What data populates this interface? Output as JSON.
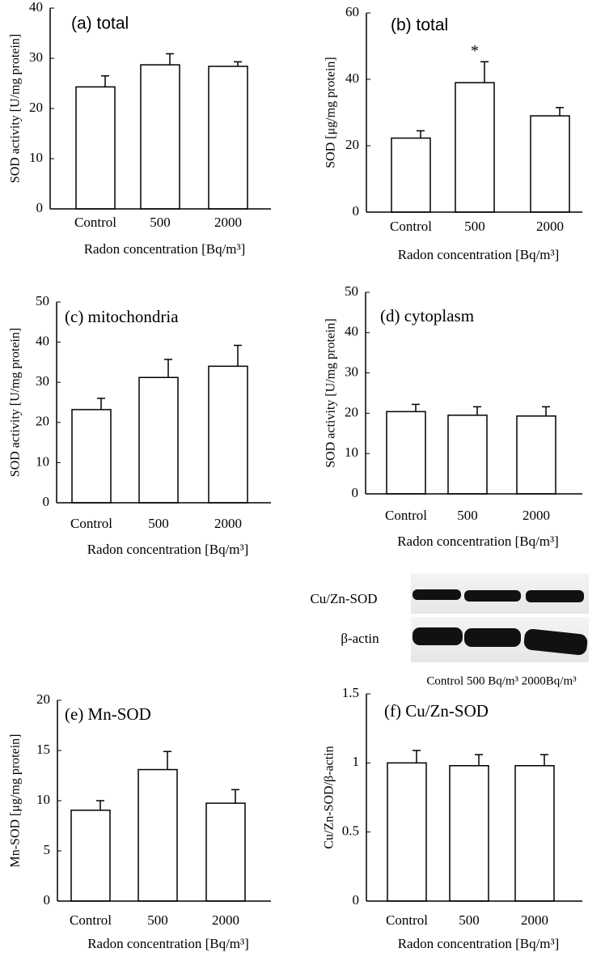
{
  "chart_data": [
    {
      "type": "bar",
      "title": "(a) total",
      "y_label": "SOD activity [U/mg protein]",
      "x_label": "Radon concentration [Bq/m³]",
      "categories": [
        "Control",
        "500",
        "2000"
      ],
      "values": [
        24.3,
        28.7,
        28.4
      ],
      "errors": [
        2.2,
        2.2,
        0.9
      ],
      "ylim": [
        0,
        40
      ],
      "yticks": [
        0,
        10,
        20,
        30,
        40
      ],
      "color": "#ffffff"
    },
    {
      "type": "bar",
      "title": "(b) total",
      "y_label": "SOD [μg/mg protein]",
      "x_label": "Radon concentration [Bq/m³]",
      "categories": [
        "Control",
        "500",
        "2000"
      ],
      "values": [
        22.3,
        39,
        29
      ],
      "errors": [
        2.2,
        6.3,
        2.5
      ],
      "markers": [
        null,
        "*",
        null
      ],
      "ylim": [
        0,
        60
      ],
      "yticks": [
        0,
        20,
        40,
        60
      ],
      "color": "#ffffff"
    },
    {
      "type": "bar",
      "title": "(c) mitochondria",
      "y_label": "SOD activity [U/mg protein]",
      "x_label": "Radon concentration [Bq/m³]",
      "categories": [
        "Control",
        "500",
        "2000"
      ],
      "values": [
        23.2,
        31.2,
        34
      ],
      "errors": [
        2.8,
        4.5,
        5.2
      ],
      "ylim": [
        0,
        50
      ],
      "yticks": [
        0,
        10,
        20,
        30,
        40,
        50
      ],
      "color": "#ffffff"
    },
    {
      "type": "bar",
      "title": "(d) cytoplasm",
      "y_label": "SOD activity [U/mg protein]",
      "x_label": "Radon concentration [Bq/m³]",
      "categories": [
        "Control",
        "500",
        "2000"
      ],
      "values": [
        20.4,
        19.5,
        19.3
      ],
      "errors": [
        1.8,
        2.1,
        2.3
      ],
      "ylim": [
        0,
        50
      ],
      "yticks": [
        0,
        10,
        20,
        30,
        40,
        50
      ],
      "color": "#ffffff"
    },
    {
      "type": "bar",
      "title": "(e) Mn-SOD",
      "y_label": "Mn-SOD [μg/mg protein]",
      "x_label": "Radon concentration [Bq/m³]",
      "categories": [
        "Control",
        "500",
        "2000"
      ],
      "values": [
        9.05,
        13.1,
        9.75
      ],
      "errors": [
        0.95,
        1.8,
        1.35
      ],
      "ylim": [
        0,
        20
      ],
      "yticks": [
        0,
        5,
        10,
        15,
        20
      ],
      "color": "#ffffff"
    },
    {
      "type": "bar",
      "title": "(f) Cu/Zn-SOD",
      "y_label": "Cu/Zn-SOD/β-actin",
      "x_label": "Radon concentration [Bq/m³]",
      "categories": [
        "Control",
        "500",
        "2000"
      ],
      "values": [
        1.0,
        0.98,
        0.98
      ],
      "errors": [
        0.09,
        0.08,
        0.08
      ],
      "ylim": [
        0,
        1.5
      ],
      "yticks": [
        0,
        0.5,
        1,
        1.5
      ],
      "color": "#ffffff"
    }
  ],
  "blot": {
    "rows": [
      "Cu/Zn-SOD",
      "β-actin"
    ],
    "lanes": "Control 500 Bq/m³ 2000Bq/m³"
  }
}
